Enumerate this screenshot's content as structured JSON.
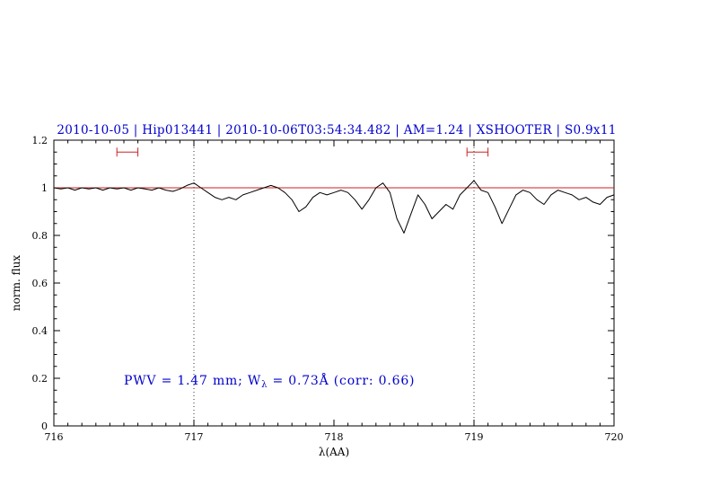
{
  "title": "2010-10-05 | Hip013441 | 2010-10-06T03:54:34.482 | AM=1.24 | XSHOOTER | S0.9x11",
  "annotation": {
    "prefix": "PWV = 1.47 mm; W",
    "sub": "λ",
    "suffix": " = 0.73Å (corr: 0.66)"
  },
  "colors": {
    "accent_blue": "#0000cd",
    "line_red": "#cc2222",
    "spectrum_black": "#000000",
    "dotted_line": "#333333"
  },
  "chart_data": {
    "type": "line",
    "title": "2010-10-05 | Hip013441 | 2010-10-06T03:54:34.482 | AM=1.24 | XSHOOTER | S0.9x11",
    "xlabel": "λ(AA)",
    "ylabel": "norm. flux",
    "xlim": [
      716,
      720
    ],
    "ylim": [
      0,
      1.2
    ],
    "xticks": [
      716,
      717,
      718,
      719,
      720
    ],
    "xtick_labels": [
      "716",
      "717",
      "718",
      "719",
      "720"
    ],
    "yticks": [
      0,
      0.2,
      0.4,
      0.6,
      0.8,
      1,
      1.2
    ],
    "ytick_labels": [
      "0",
      "0.2",
      "0.4",
      "0.6",
      "0.8",
      "1",
      "1.2"
    ],
    "x_minor_step": 0.1,
    "y_minor_step": 0.05,
    "grid": false,
    "legend": "none",
    "vlines": [
      717,
      719
    ],
    "continuum": {
      "y": 1.0,
      "x1": 716,
      "x2": 720
    },
    "markers": [
      {
        "x1": 716.45,
        "x2": 716.6,
        "y": 1.15
      },
      {
        "x1": 718.95,
        "x2": 719.1,
        "y": 1.15
      }
    ],
    "series": [
      {
        "name": "observed spectrum",
        "x_start": 716.0,
        "x_step": 0.05,
        "flux": [
          1.0,
          0.995,
          1.0,
          0.99,
          1.0,
          0.995,
          1.0,
          0.99,
          1.0,
          0.995,
          1.0,
          0.99,
          1.0,
          0.995,
          0.99,
          1.0,
          0.99,
          0.985,
          0.995,
          1.01,
          1.02,
          1.0,
          0.98,
          0.96,
          0.95,
          0.96,
          0.95,
          0.97,
          0.98,
          0.99,
          1.0,
          1.01,
          1.0,
          0.98,
          0.95,
          0.9,
          0.92,
          0.96,
          0.98,
          0.97,
          0.98,
          0.99,
          0.98,
          0.95,
          0.91,
          0.95,
          1.0,
          1.02,
          0.98,
          0.87,
          0.81,
          0.89,
          0.97,
          0.93,
          0.87,
          0.9,
          0.93,
          0.91,
          0.97,
          1.0,
          1.03,
          0.99,
          0.98,
          0.92,
          0.85,
          0.91,
          0.97,
          0.99,
          0.98,
          0.95,
          0.93,
          0.97,
          0.99,
          0.98,
          0.97,
          0.95,
          0.96,
          0.94,
          0.93,
          0.96,
          0.97
        ]
      }
    ]
  }
}
